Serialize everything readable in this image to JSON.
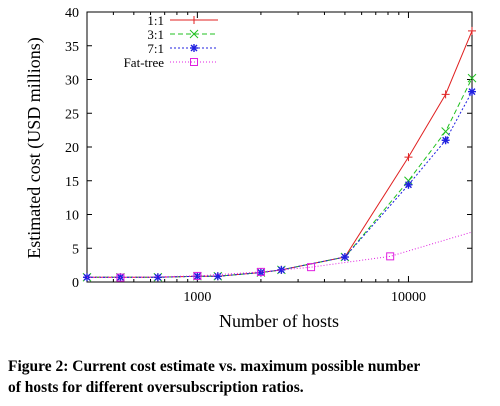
{
  "chart_data": {
    "type": "line",
    "xlabel": "Number of hosts",
    "ylabel": "Estimated cost (USD millions)",
    "xscale": "log",
    "xlim": [
      300,
      20000
    ],
    "ylim": [
      0,
      40
    ],
    "x_tick_labels": [
      "1000",
      "10000"
    ],
    "x_ticks": [
      1000,
      10000
    ],
    "y_ticks": [
      0,
      5,
      10,
      15,
      20,
      25,
      30,
      35,
      40
    ],
    "legend_position": "top-left",
    "grid": false,
    "series": [
      {
        "name": "1:1",
        "color": "#e02020",
        "dash": "",
        "marker": "plus",
        "points": [
          [
            300,
            0.7
          ],
          [
            432,
            0.7
          ],
          [
            650,
            0.7
          ],
          [
            1000,
            0.85
          ],
          [
            1250,
            0.85
          ],
          [
            2000,
            1.4
          ],
          [
            2500,
            1.8
          ],
          [
            5000,
            3.7
          ],
          [
            10000,
            18.5
          ],
          [
            15000,
            27.8
          ],
          [
            20000,
            37.2
          ]
        ]
      },
      {
        "name": "3:1",
        "color": "#20c020",
        "dash": "5,3",
        "marker": "x",
        "points": [
          [
            300,
            0.7
          ],
          [
            432,
            0.7
          ],
          [
            650,
            0.7
          ],
          [
            1000,
            0.85
          ],
          [
            1250,
            0.85
          ],
          [
            2000,
            1.4
          ],
          [
            2500,
            1.8
          ],
          [
            5000,
            3.7
          ],
          [
            10000,
            15.0
          ],
          [
            15000,
            22.3
          ],
          [
            20000,
            30.2
          ]
        ]
      },
      {
        "name": "7:1",
        "color": "#2020e0",
        "dash": "2,2",
        "marker": "star",
        "points": [
          [
            300,
            0.7
          ],
          [
            432,
            0.7
          ],
          [
            650,
            0.7
          ],
          [
            1000,
            0.85
          ],
          [
            1250,
            0.85
          ],
          [
            2000,
            1.4
          ],
          [
            2500,
            1.8
          ],
          [
            5000,
            3.7
          ],
          [
            10000,
            14.4
          ],
          [
            15000,
            21.0
          ],
          [
            20000,
            28.2
          ]
        ]
      },
      {
        "name": "Fat-tree",
        "color": "#e020e0",
        "dash": "1,2",
        "marker": "square",
        "points": [
          [
            300,
            0.7
          ],
          [
            432,
            0.65
          ],
          [
            1000,
            0.9
          ],
          [
            2000,
            1.5
          ],
          [
            3456,
            2.2
          ],
          [
            8192,
            3.8
          ],
          [
            20000,
            7.4
          ]
        ],
        "marked_points": [
          [
            432,
            0.65
          ],
          [
            1000,
            0.9
          ],
          [
            2000,
            1.5
          ],
          [
            3456,
            2.2
          ],
          [
            8192,
            3.8
          ]
        ]
      }
    ]
  },
  "caption": {
    "line1": "Figure 2: Current cost estimate vs. maximum possible number",
    "line2": "of hosts for different oversubscription ratios."
  }
}
